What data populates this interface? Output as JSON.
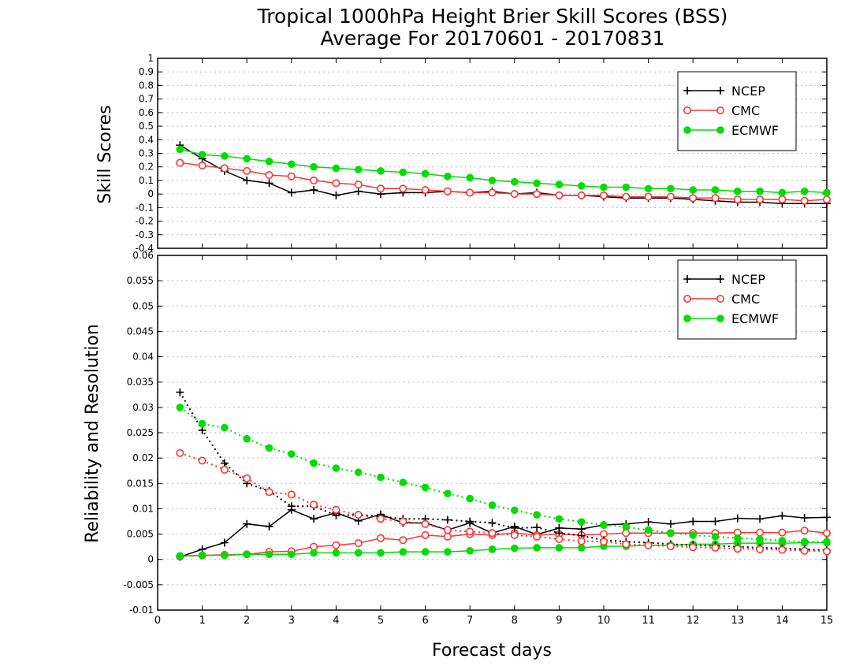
{
  "chart_data": [
    {
      "type": "line",
      "title": "Tropical 1000hPa Height Brier Skill Scores (BSS)",
      "subtitle": "Average For 20170601 - 20170831",
      "ylabel": "Skill Scores",
      "xlabel": "",
      "xlim": [
        0,
        15
      ],
      "ylim": [
        -0.4,
        1
      ],
      "yticks": [
        "1",
        "0.9",
        "0.8",
        "0.7",
        "0.6",
        "0.5",
        "0.4",
        "0.3",
        "0.2",
        "0.1",
        "0",
        "-0.1",
        "-0.2",
        "-0.3",
        "-0.4"
      ],
      "grid": true,
      "legend": "top-right",
      "x": [
        0.5,
        1,
        1.5,
        2,
        2.5,
        3,
        3.5,
        4,
        4.5,
        5,
        5.5,
        6,
        6.5,
        7,
        7.5,
        8,
        8.5,
        9,
        9.5,
        10,
        10.5,
        11,
        11.5,
        12,
        12.5,
        13,
        13.5,
        14,
        14.5,
        15
      ],
      "series": [
        {
          "name": "NCEP",
          "color": "#000000",
          "marker": "plus",
          "style": "solid",
          "values": [
            0.36,
            0.26,
            0.17,
            0.1,
            0.08,
            0.01,
            0.03,
            -0.01,
            0.02,
            0.0,
            0.01,
            0.01,
            0.02,
            0.01,
            0.02,
            0.0,
            0.01,
            -0.01,
            -0.01,
            -0.02,
            -0.03,
            -0.03,
            -0.03,
            -0.04,
            -0.05,
            -0.06,
            -0.06,
            -0.07,
            -0.07,
            -0.07
          ]
        },
        {
          "name": "CMC",
          "color": "#ff3333",
          "marker": "open-circle",
          "style": "solid",
          "values": [
            0.23,
            0.21,
            0.19,
            0.17,
            0.14,
            0.13,
            0.1,
            0.08,
            0.07,
            0.04,
            0.04,
            0.03,
            0.02,
            0.01,
            0.01,
            0.0,
            0.0,
            -0.01,
            -0.01,
            -0.01,
            -0.02,
            -0.02,
            -0.02,
            -0.03,
            -0.03,
            -0.04,
            -0.04,
            -0.04,
            -0.05,
            -0.04
          ]
        },
        {
          "name": "ECMWF",
          "color": "#00dd00",
          "marker": "filled-circle",
          "style": "solid",
          "values": [
            0.33,
            0.29,
            0.28,
            0.26,
            0.24,
            0.22,
            0.2,
            0.19,
            0.18,
            0.17,
            0.16,
            0.15,
            0.13,
            0.12,
            0.1,
            0.09,
            0.08,
            0.07,
            0.06,
            0.05,
            0.05,
            0.04,
            0.04,
            0.03,
            0.03,
            0.02,
            0.02,
            0.01,
            0.02,
            0.01
          ]
        }
      ]
    },
    {
      "type": "line",
      "ylabel": "Reliability and Resolution",
      "xlabel": "Forecast days",
      "xlim": [
        0,
        15
      ],
      "ylim": [
        -0.01,
        0.06
      ],
      "xticks": [
        "0",
        "1",
        "2",
        "3",
        "4",
        "5",
        "6",
        "7",
        "8",
        "9",
        "10",
        "11",
        "12",
        "13",
        "14",
        "15"
      ],
      "yticks": [
        "0.06",
        "0.055",
        "0.05",
        "0.045",
        "0.04",
        "0.035",
        "0.03",
        "0.025",
        "0.02",
        "0.015",
        "0.01",
        "0.005",
        "0",
        "-0.005",
        "-0.01"
      ],
      "grid": true,
      "legend": "top-right",
      "x": [
        0.5,
        1,
        1.5,
        2,
        2.5,
        3,
        3.5,
        4,
        4.5,
        5,
        5.5,
        6,
        6.5,
        7,
        7.5,
        8,
        8.5,
        9,
        9.5,
        10,
        10.5,
        11,
        11.5,
        12,
        12.5,
        13,
        13.5,
        14,
        14.5,
        15
      ],
      "series": [
        {
          "name": "NCEP",
          "color": "#000000",
          "marker": "plus",
          "style": "solid",
          "values": [
            0.0005,
            0.002,
            0.0033,
            0.007,
            0.0065,
            0.0098,
            0.008,
            0.0092,
            0.0076,
            0.0089,
            0.0072,
            0.0072,
            0.0058,
            0.0072,
            0.0052,
            0.0065,
            0.0049,
            0.0062,
            0.006,
            0.0068,
            0.007,
            0.0074,
            0.007,
            0.0075,
            0.0075,
            0.0081,
            0.008,
            0.0086,
            0.0082,
            0.0083
          ]
        },
        {
          "name": "CMC",
          "color": "#ff3333",
          "marker": "open-circle",
          "style": "solid",
          "values": [
            0.0006,
            0.0008,
            0.0009,
            0.001,
            0.0015,
            0.0016,
            0.0025,
            0.0028,
            0.0032,
            0.0042,
            0.0038,
            0.0048,
            0.0045,
            0.005,
            0.0048,
            0.0052,
            0.0048,
            0.005,
            0.0048,
            0.005,
            0.0052,
            0.0052,
            0.0052,
            0.0052,
            0.0052,
            0.0053,
            0.0053,
            0.0053,
            0.0057,
            0.0052
          ]
        },
        {
          "name": "ECMWF",
          "color": "#00dd00",
          "marker": "filled-circle",
          "style": "solid",
          "values": [
            0.0007,
            0.0008,
            0.0008,
            0.001,
            0.001,
            0.001,
            0.0013,
            0.0013,
            0.0013,
            0.0013,
            0.0015,
            0.0015,
            0.0015,
            0.0017,
            0.002,
            0.0022,
            0.0023,
            0.0023,
            0.0023,
            0.0026,
            0.0026,
            0.0028,
            0.0028,
            0.003,
            0.003,
            0.0032,
            0.0032,
            0.0032,
            0.0033,
            0.0033
          ]
        },
        {
          "name": "",
          "color": "#000000",
          "marker": "plus",
          "style": "dotted",
          "values": [
            0.033,
            0.0255,
            0.019,
            0.015,
            0.0135,
            0.0105,
            0.0105,
            0.0087,
            0.0088,
            0.0085,
            0.008,
            0.008,
            0.0078,
            0.0075,
            0.0072,
            0.0062,
            0.0063,
            0.0052,
            0.0047,
            0.0038,
            0.0035,
            0.0033,
            0.003,
            0.0028,
            0.0027,
            0.0025,
            0.0023,
            0.0022,
            0.002,
            0.0018
          ]
        },
        {
          "name": "",
          "color": "#ff3333",
          "marker": "open-circle",
          "style": "dotted",
          "values": [
            0.021,
            0.0195,
            0.0177,
            0.016,
            0.0133,
            0.0128,
            0.0108,
            0.0098,
            0.0088,
            0.008,
            0.0075,
            0.007,
            0.0058,
            0.0055,
            0.0052,
            0.0048,
            0.0045,
            0.004,
            0.0036,
            0.0035,
            0.003,
            0.0028,
            0.0026,
            0.0024,
            0.0023,
            0.0021,
            0.002,
            0.0019,
            0.0017,
            0.0016
          ]
        },
        {
          "name": "",
          "color": "#00dd00",
          "marker": "filled-circle",
          "style": "dotted",
          "values": [
            0.03,
            0.0268,
            0.026,
            0.0238,
            0.022,
            0.0208,
            0.019,
            0.018,
            0.0172,
            0.0162,
            0.0152,
            0.0142,
            0.013,
            0.012,
            0.0107,
            0.0097,
            0.0088,
            0.008,
            0.0074,
            0.0068,
            0.0064,
            0.0058,
            0.0052,
            0.0048,
            0.0045,
            0.0042,
            0.004,
            0.0037,
            0.0035,
            0.0035
          ]
        }
      ]
    }
  ],
  "legend_labels": [
    "NCEP",
    "CMC",
    "ECMWF"
  ]
}
